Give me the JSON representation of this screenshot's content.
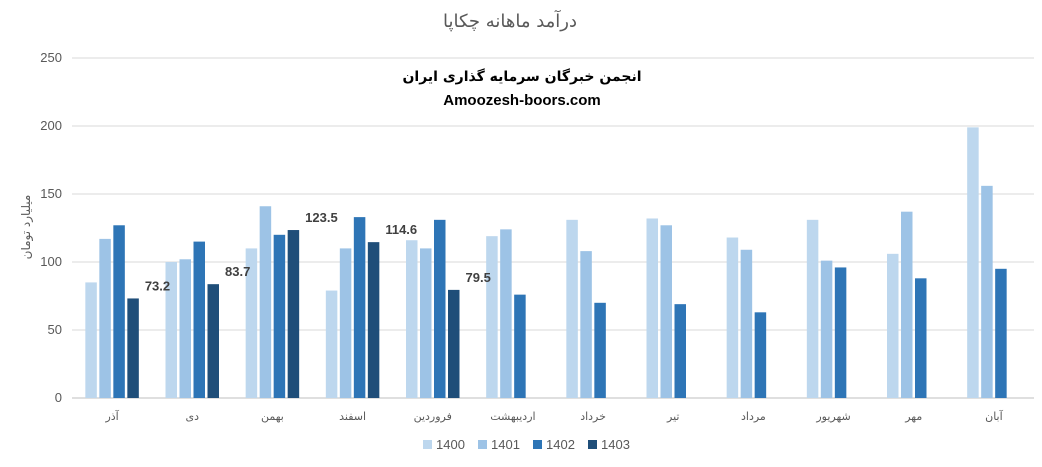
{
  "chart_data": {
    "type": "bar",
    "title": "درآمد ماهانه چکاپا",
    "ylabel": "میلیارد تومان",
    "xlabel": "",
    "ylim": [
      0,
      250
    ],
    "yticks": [
      0,
      50,
      100,
      150,
      200,
      250
    ],
    "grid": true,
    "legend_position": "bottom",
    "categories": [
      "آذر",
      "دی",
      "بهمن",
      "اسفند",
      "فروردین",
      "اردیبهشت",
      "خرداد",
      "تیر",
      "مرداد",
      "شهریور",
      "مهر",
      "آبان"
    ],
    "series": [
      {
        "name": "1400",
        "color": "#BDD7EE",
        "values": [
          85,
          100,
          110,
          79,
          116,
          119,
          131,
          132,
          118,
          131,
          106,
          199
        ]
      },
      {
        "name": "1401",
        "color": "#9DC3E6",
        "values": [
          117,
          102,
          141,
          110,
          110,
          124,
          108,
          127,
          109,
          101,
          137,
          156
        ]
      },
      {
        "name": "1402",
        "color": "#2E75B6",
        "values": [
          127,
          115,
          120,
          133,
          131,
          76,
          70,
          69,
          63,
          96,
          88,
          95
        ]
      },
      {
        "name": "1403",
        "color": "#1F4E79",
        "values": [
          73.2,
          83.7,
          123.5,
          114.6,
          79.5,
          null,
          null,
          null,
          null,
          null,
          null,
          null
        ]
      }
    ],
    "data_labels": [
      {
        "series": "1403",
        "category": "آذر",
        "text": "73.2"
      },
      {
        "series": "1403",
        "category": "دی",
        "text": "83.7"
      },
      {
        "series": "1403",
        "category": "بهمن",
        "text": "123.5"
      },
      {
        "series": "1403",
        "category": "اسفند",
        "text": "114.6"
      },
      {
        "series": "1403",
        "category": "فروردین",
        "text": "79.5"
      }
    ]
  },
  "watermark": {
    "line1": "انجمن خبرگان سرمایه گذاری ایران",
    "line2": "Amoozesh-boors.com"
  },
  "colors": {
    "grid": "#D9D9D9",
    "axis": "#BFBFBF",
    "text": "#595959"
  }
}
